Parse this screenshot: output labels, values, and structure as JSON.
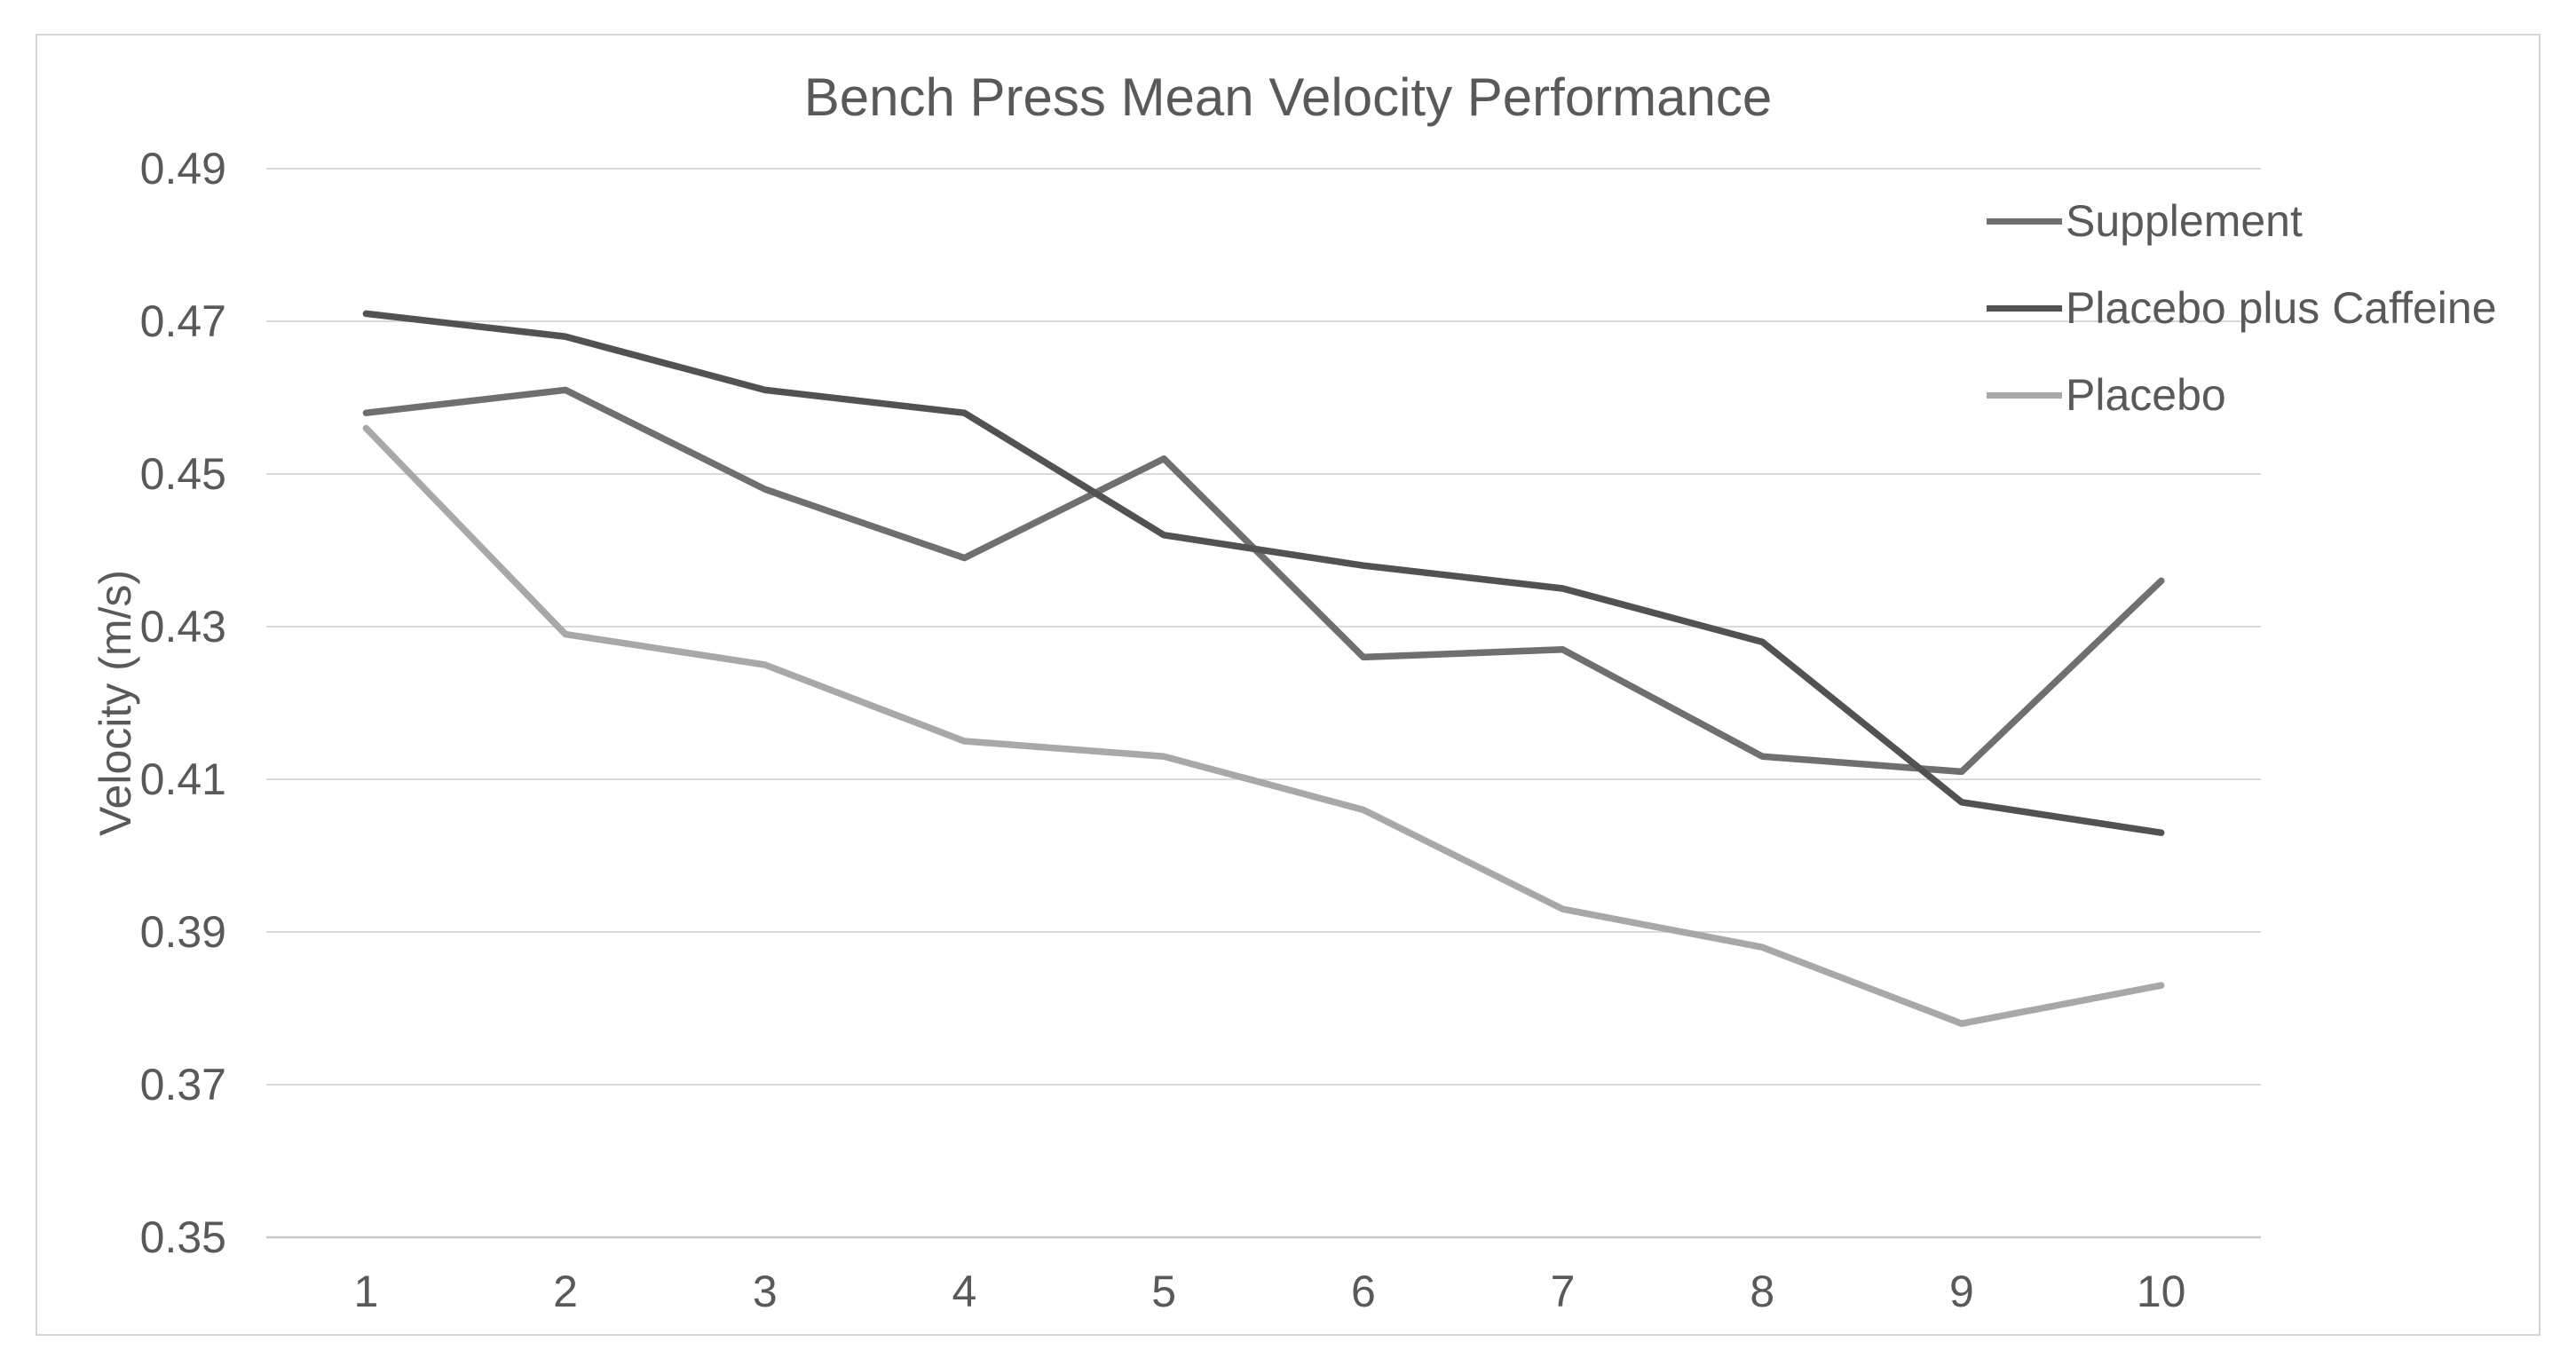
{
  "chart_data": {
    "type": "line",
    "title": "Bench Press Mean Velocity Performance",
    "xlabel": "",
    "ylabel": "Velocity (m/s)",
    "categories": [
      "1",
      "2",
      "3",
      "4",
      "5",
      "6",
      "7",
      "8",
      "9",
      "10"
    ],
    "ylim": [
      0.35,
      0.49
    ],
    "yticks": [
      0.49,
      0.47,
      0.45,
      0.43,
      0.41,
      0.39,
      0.37,
      0.35
    ],
    "grid": true,
    "legend_position": "top-right",
    "series": [
      {
        "name": "Supplement",
        "color": "#6f6f6f",
        "values": [
          0.458,
          0.461,
          0.448,
          0.439,
          0.452,
          0.426,
          0.427,
          0.413,
          0.411,
          0.436
        ]
      },
      {
        "name": "Placebo plus Caffeine",
        "color": "#525252",
        "values": [
          0.471,
          0.468,
          0.461,
          0.458,
          0.442,
          0.438,
          0.435,
          0.428,
          0.407,
          0.403
        ]
      },
      {
        "name": "Placebo",
        "color": "#a8a8a8",
        "values": [
          0.456,
          0.429,
          0.425,
          0.415,
          0.413,
          0.406,
          0.393,
          0.388,
          0.378,
          0.383
        ]
      }
    ]
  },
  "style": {
    "text_color": "#595959",
    "grid_color": "#d9d9d9",
    "axis_color": "#c9c9c9",
    "border_color": "#d5d5d5",
    "background": "#ffffff",
    "line_width": 7.5
  }
}
